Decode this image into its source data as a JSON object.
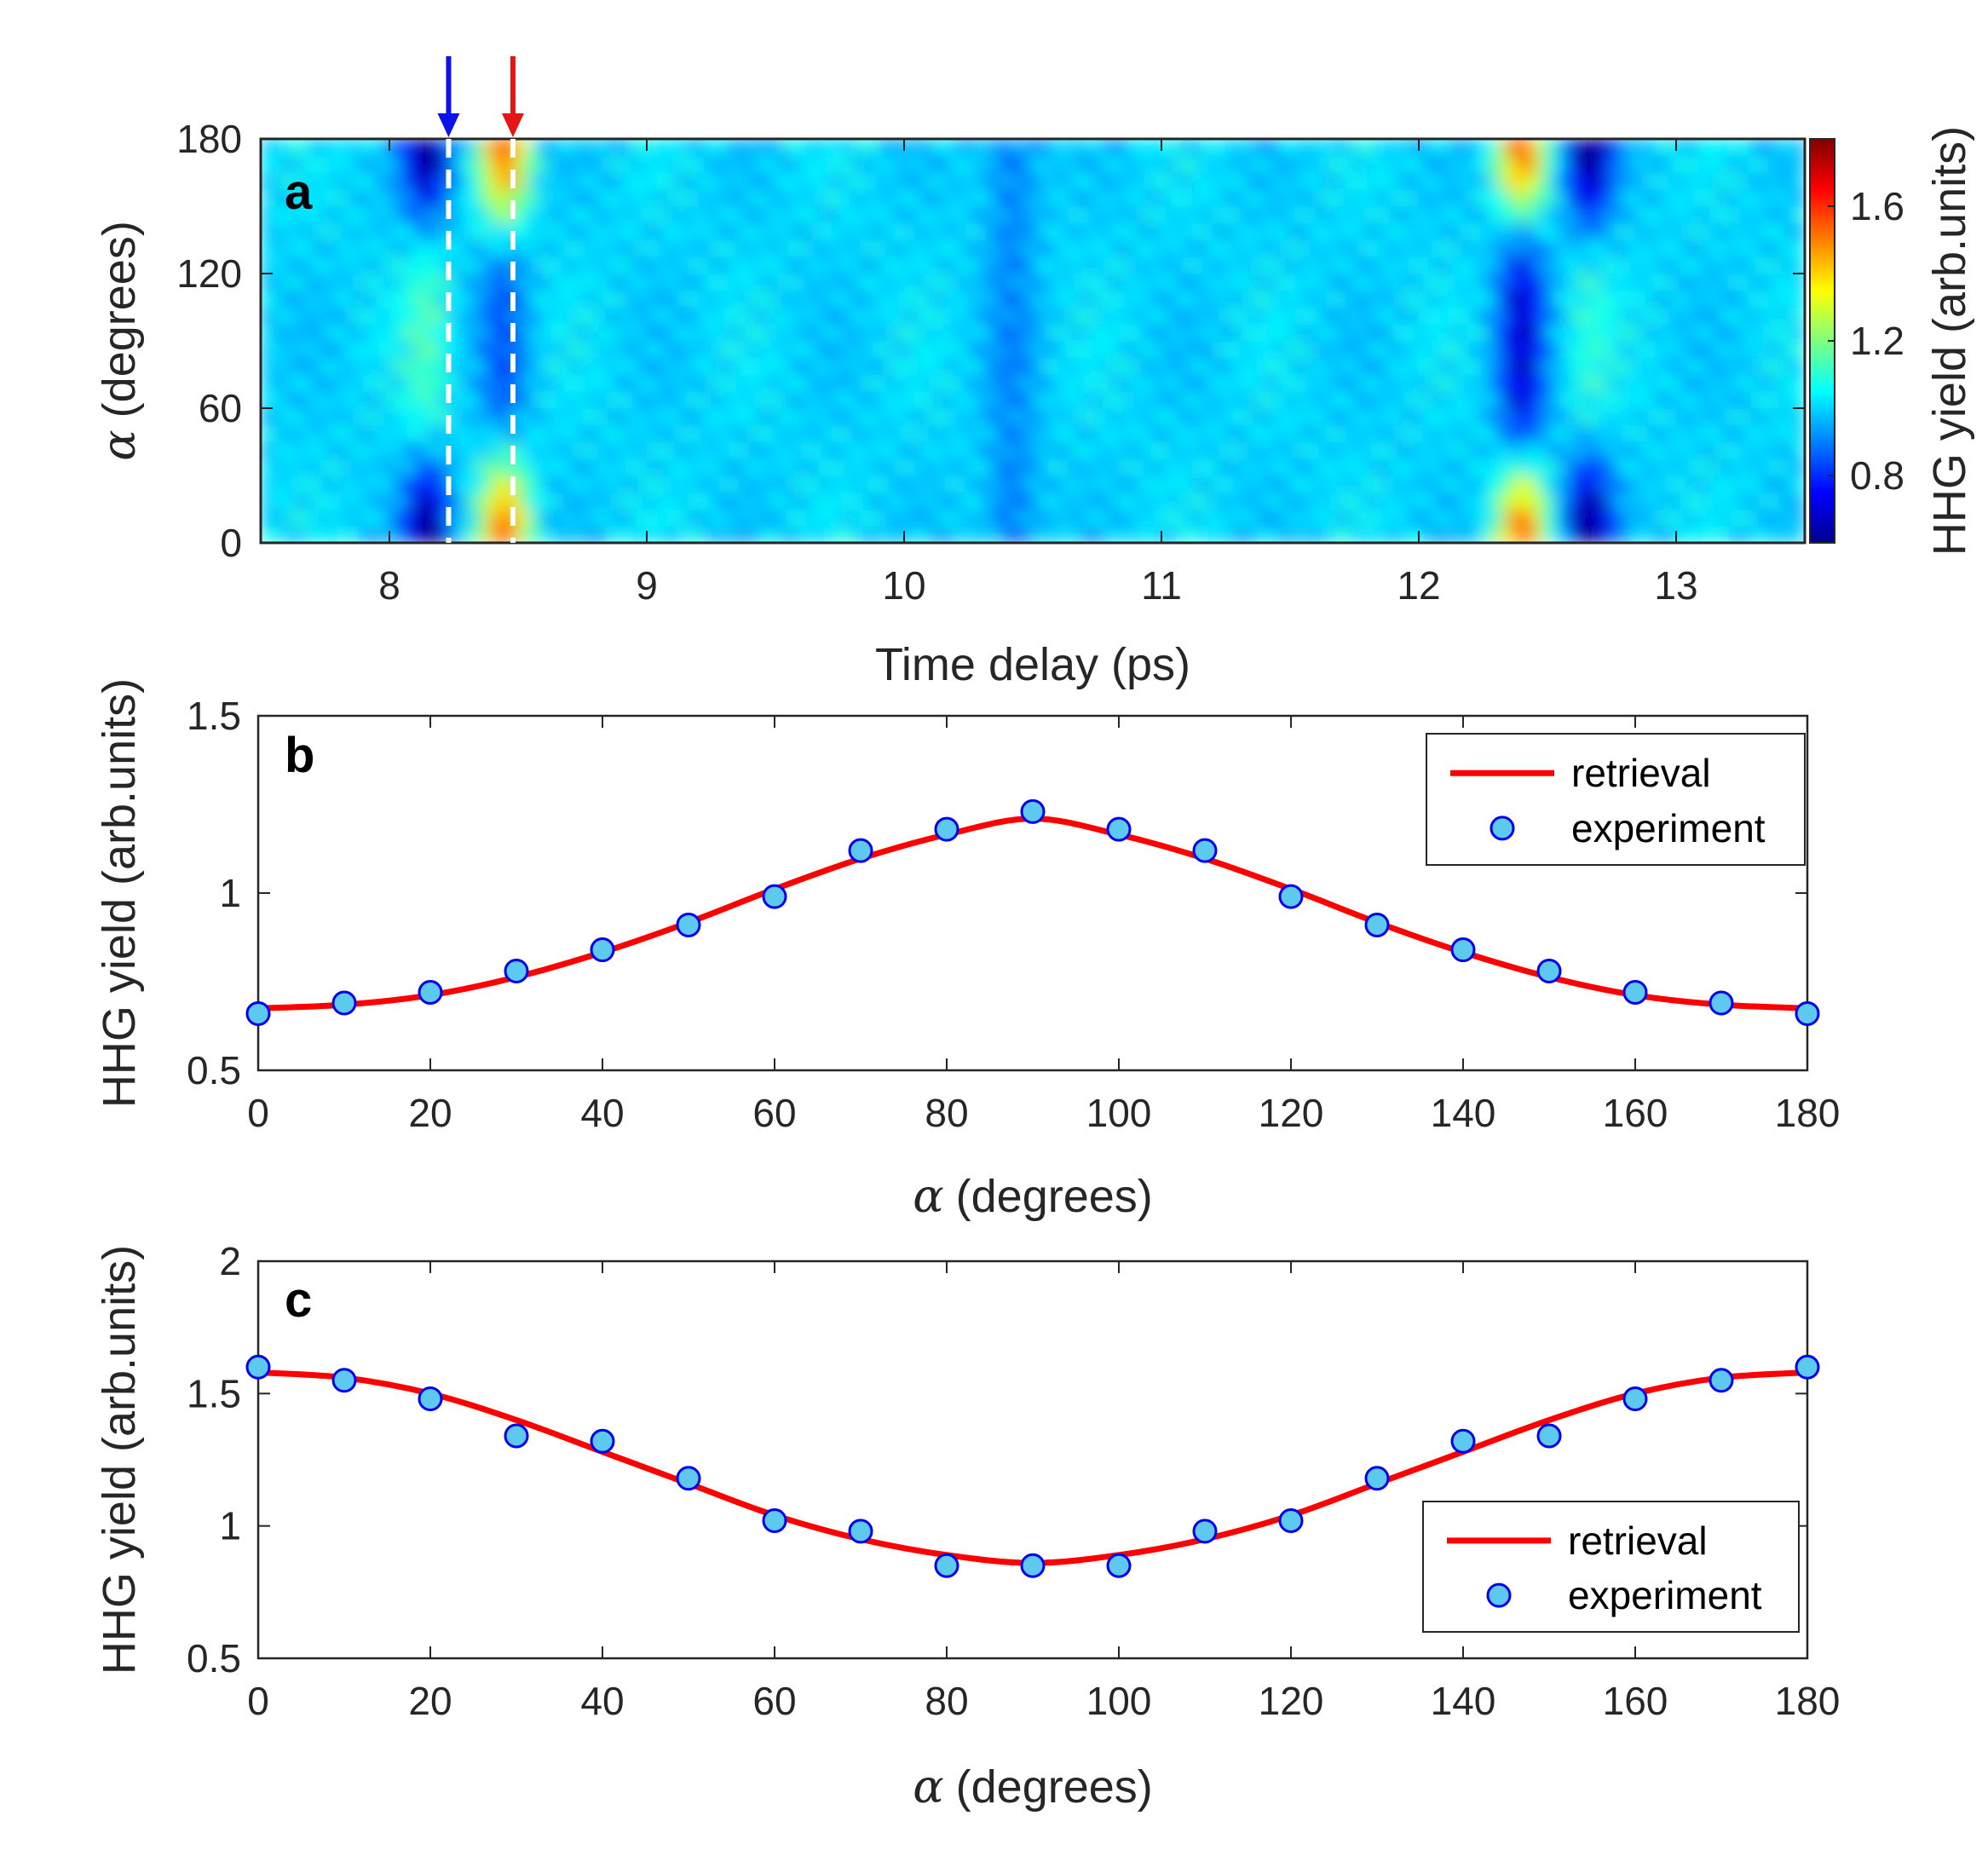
{
  "chart_data": [
    {
      "type": "heatmap",
      "panel_label": "a",
      "xlabel": "Time delay (ps)",
      "ylabel_symbol": "α",
      "ylabel_text": "(degrees)",
      "xlim": [
        7.5,
        13.5
      ],
      "ylim": [
        0,
        180
      ],
      "xticks": [
        "8",
        "9",
        "10",
        "11",
        "12",
        "13"
      ],
      "xtick_values": [
        8,
        9,
        10,
        11,
        12,
        13
      ],
      "yticks": [
        "0",
        "60",
        "120",
        "180"
      ],
      "ytick_values": [
        0,
        60,
        120,
        180
      ],
      "colorbar": {
        "label": "HHG yield (arb.units)",
        "range": [
          0.6,
          1.8
        ],
        "ticks": [
          "0.8",
          "1.2",
          "1.6"
        ],
        "tick_values": [
          0.8,
          1.2,
          1.6
        ],
        "colormap": "jet"
      },
      "markers": [
        {
          "x": 8.23,
          "color": "#0a14e6"
        },
        {
          "x": 8.48,
          "color": "#e61414"
        }
      ],
      "features": [
        {
          "x": 8.15,
          "width": 0.09,
          "edge": -0.42,
          "center": 0.12
        },
        {
          "x": 8.45,
          "width": 0.09,
          "edge": 0.55,
          "center": -0.15
        },
        {
          "x": 10.42,
          "width": 0.1,
          "edge": -0.14,
          "center": -0.08
        },
        {
          "x": 12.4,
          "width": 0.09,
          "edge": 0.55,
          "center": -0.3
        },
        {
          "x": 12.66,
          "width": 0.09,
          "edge": -0.45,
          "center": 0.08
        }
      ]
    },
    {
      "type": "line",
      "panel_label": "b",
      "xlabel_symbol": "α",
      "xlabel_text": "(degrees)",
      "ylabel": "HHG yield (arb.units)",
      "xlim": [
        0,
        180
      ],
      "ylim": [
        0.5,
        1.5
      ],
      "xticks": [
        "0",
        "20",
        "40",
        "60",
        "80",
        "100",
        "120",
        "140",
        "160",
        "180"
      ],
      "xtick_values": [
        0,
        20,
        40,
        60,
        80,
        100,
        120,
        140,
        160,
        180
      ],
      "yticks": [
        "0.5",
        "1",
        "1.5"
      ],
      "ytick_values": [
        0.5,
        1,
        1.5
      ],
      "legend": {
        "position": "top-right",
        "entries": [
          "retrieval",
          "experiment"
        ]
      },
      "series": [
        {
          "name": "retrieval",
          "kind": "line",
          "color": "#ff0000",
          "x": [
            0,
            10,
            20,
            30,
            40,
            50,
            60,
            70,
            80,
            90,
            100,
            110,
            120,
            130,
            140,
            150,
            160,
            170,
            180
          ],
          "y": [
            0.675,
            0.685,
            0.712,
            0.763,
            0.833,
            0.917,
            1.011,
            1.097,
            1.165,
            1.21,
            1.165,
            1.097,
            1.011,
            0.917,
            0.833,
            0.763,
            0.712,
            0.685,
            0.675
          ]
        },
        {
          "name": "experiment",
          "kind": "scatter",
          "color": "#5ec9ef",
          "edge": "#0000ee",
          "x": [
            0,
            10,
            20,
            30,
            40,
            50,
            60,
            70,
            80,
            90,
            100,
            110,
            120,
            130,
            140,
            150,
            160,
            170,
            180
          ],
          "y": [
            0.66,
            0.69,
            0.72,
            0.78,
            0.84,
            0.91,
            0.99,
            1.12,
            1.18,
            1.23,
            1.18,
            1.12,
            0.99,
            0.91,
            0.84,
            0.78,
            0.72,
            0.69,
            0.66
          ]
        }
      ]
    },
    {
      "type": "line",
      "panel_label": "c",
      "xlabel_symbol": "α",
      "xlabel_text": "(degrees)",
      "ylabel": "HHG yield (arb.units)",
      "xlim": [
        0,
        180
      ],
      "ylim": [
        0.5,
        2
      ],
      "xticks": [
        "0",
        "20",
        "40",
        "60",
        "80",
        "100",
        "120",
        "140",
        "160",
        "180"
      ],
      "xtick_values": [
        0,
        20,
        40,
        60,
        80,
        100,
        120,
        140,
        160,
        180
      ],
      "yticks": [
        "0.5",
        "1",
        "1.5",
        "2"
      ],
      "ytick_values": [
        0.5,
        1,
        1.5,
        2
      ],
      "legend": {
        "position": "bottom-right",
        "entries": [
          "retrieval",
          "experiment"
        ]
      },
      "series": [
        {
          "name": "retrieval",
          "kind": "line",
          "color": "#ff0000",
          "x": [
            0,
            10,
            20,
            30,
            40,
            50,
            60,
            70,
            80,
            90,
            100,
            110,
            120,
            130,
            140,
            150,
            160,
            170,
            180
          ],
          "y": [
            1.58,
            1.56,
            1.5,
            1.4,
            1.28,
            1.16,
            1.04,
            0.95,
            0.89,
            0.86,
            0.89,
            0.95,
            1.04,
            1.16,
            1.28,
            1.4,
            1.5,
            1.56,
            1.58
          ]
        },
        {
          "name": "experiment",
          "kind": "scatter",
          "color": "#5ec9ef",
          "edge": "#0000ee",
          "x": [
            0,
            10,
            20,
            30,
            40,
            50,
            60,
            70,
            80,
            90,
            100,
            110,
            120,
            130,
            140,
            150,
            160,
            170,
            180
          ],
          "y": [
            1.6,
            1.55,
            1.48,
            1.34,
            1.32,
            1.18,
            1.02,
            0.98,
            0.85,
            0.85,
            0.85,
            0.98,
            1.02,
            1.18,
            1.32,
            1.34,
            1.48,
            1.55,
            1.6
          ]
        }
      ]
    }
  ]
}
